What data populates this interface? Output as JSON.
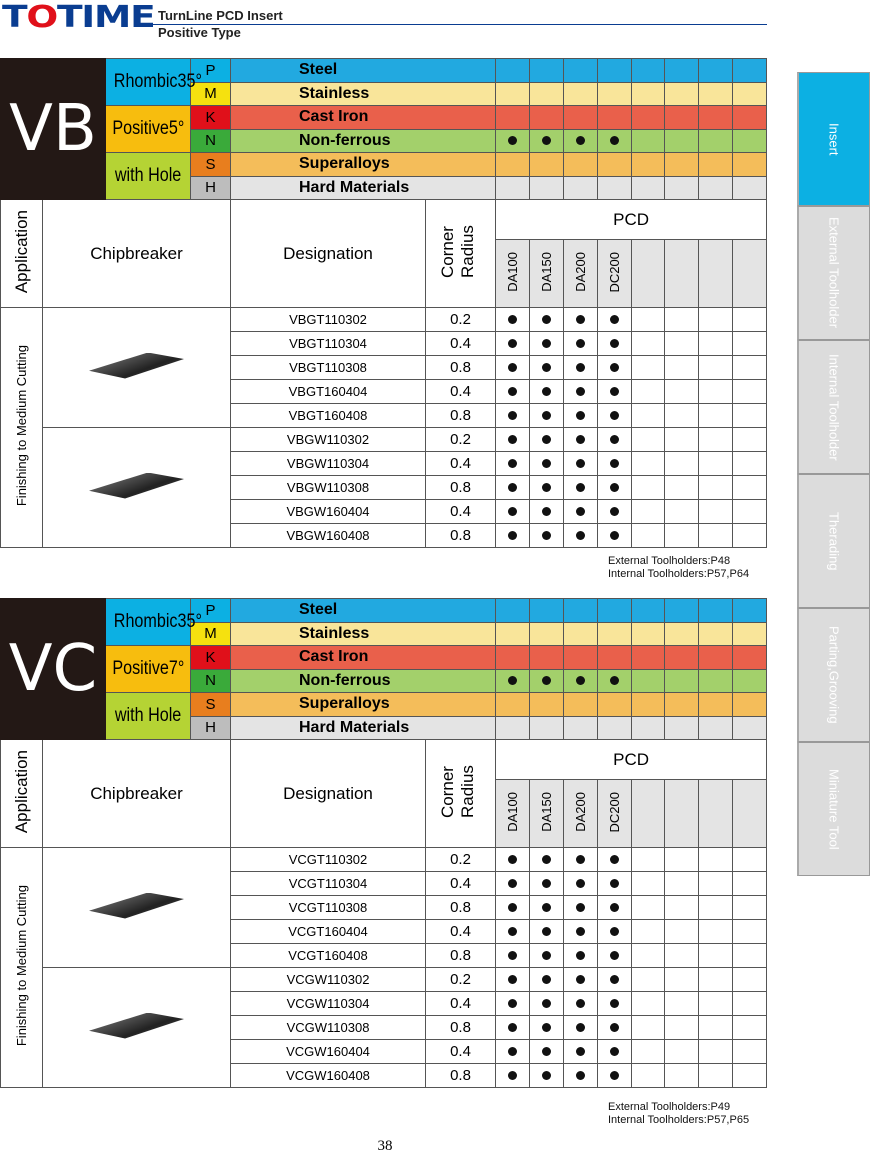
{
  "header": {
    "logo": "TOTIME",
    "title": "TurnLine PCD Insert",
    "subtitle": "Positive Type"
  },
  "side_tabs": [
    {
      "label": "Insert",
      "active": true
    },
    {
      "label": "External Toolholder"
    },
    {
      "label": "Internal Toolholder"
    },
    {
      "label": "Therading"
    },
    {
      "label": "Parting,Grooving"
    },
    {
      "label": "Miniature Tool"
    }
  ],
  "materials": [
    {
      "letter": "P",
      "name": "Steel",
      "letter_color": "#0cb0e3",
      "row_color": "#22a9e0"
    },
    {
      "letter": "M",
      "name": "Stainless",
      "letter_color": "#f5e10f",
      "row_color": "#f9e59a"
    },
    {
      "letter": "K",
      "name": "Cast  Iron",
      "letter_color": "#e0101a",
      "row_color": "#e9604b"
    },
    {
      "letter": "N",
      "name": "Non-ferrous",
      "letter_color": "#3aaa3a",
      "row_color": "#a3d06b"
    },
    {
      "letter": "S",
      "name": "Superalloys",
      "letter_color": "#e87e1e",
      "row_color": "#f4bd5a"
    },
    {
      "letter": "H",
      "name": "Hard Materials",
      "letter_color": "#bdbdbd",
      "row_color": "#e4e4e4"
    }
  ],
  "columns": {
    "application": "Application",
    "chipbreaker": "Chipbreaker",
    "designation": "Designation",
    "corner_radius": "Corner Radius",
    "pcd": "PCD",
    "grades": [
      "DA100",
      "DA150",
      "DA200",
      "DC200",
      "",
      "",
      "",
      ""
    ]
  },
  "application_text": "Finishing to Medium Cutting",
  "sections": [
    {
      "code": "VB",
      "desc": [
        "Rhombic35°",
        "Positive5°",
        "with Hole"
      ],
      "rows": [
        [
          "VBGT110302",
          "0.2"
        ],
        [
          "VBGT110304",
          "0.4"
        ],
        [
          "VBGT110308",
          "0.8"
        ],
        [
          "VBGT160404",
          "0.4"
        ],
        [
          "VBGT160408",
          "0.8"
        ],
        [
          "VBGW110302",
          "0.2"
        ],
        [
          "VBGW110304",
          "0.4"
        ],
        [
          "VBGW110308",
          "0.8"
        ],
        [
          "VBGW160404",
          "0.4"
        ],
        [
          "VBGW160408",
          "0.8"
        ]
      ],
      "notes": [
        "External Toolholders:P48",
        "Internal Toolholders:P57,P64"
      ]
    },
    {
      "code": "VC",
      "desc": [
        "Rhombic35°",
        "Positive7°",
        "with Hole"
      ],
      "rows": [
        [
          "VCGT110302",
          "0.2"
        ],
        [
          "VCGT110304",
          "0.4"
        ],
        [
          "VCGT110308",
          "0.8"
        ],
        [
          "VCGT160404",
          "0.4"
        ],
        [
          "VCGT160408",
          "0.8"
        ],
        [
          "VCGW110302",
          "0.2"
        ],
        [
          "VCGW110304",
          "0.4"
        ],
        [
          "VCGW110308",
          "0.8"
        ],
        [
          "VCGW160404",
          "0.4"
        ],
        [
          "VCGW160408",
          "0.8"
        ]
      ],
      "notes": [
        "External Toolholders:P49",
        "Internal Toolholders:P57,P65"
      ]
    }
  ],
  "page_number": "38"
}
